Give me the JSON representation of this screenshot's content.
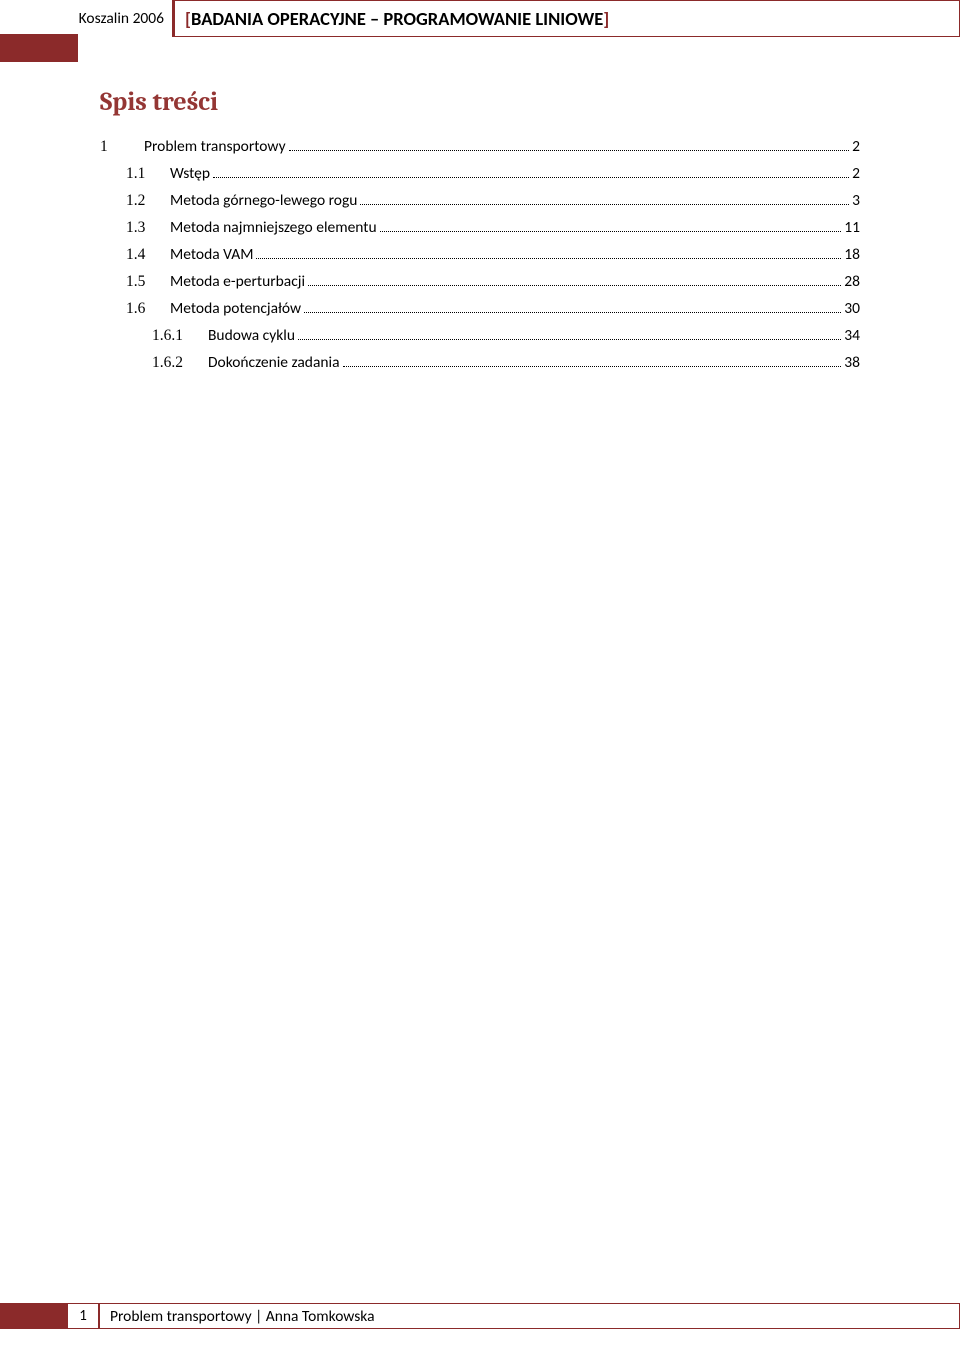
{
  "header": {
    "left_text": "Koszalin 2006",
    "title": "BADANIA OPERACYJNE – PROGRAMOWANIE LINIOWE",
    "bracket_color": "#8b2a2a"
  },
  "toc": {
    "title": "Spis treści",
    "title_color": "#943634",
    "items": [
      {
        "number": "1",
        "label": "Problem transportowy",
        "page": "2",
        "level": 0
      },
      {
        "number": "1.1",
        "label": "Wstęp",
        "page": "2",
        "level": 1
      },
      {
        "number": "1.2",
        "label": "Metoda górnego-lewego rogu",
        "page": "3",
        "level": 1
      },
      {
        "number": "1.3",
        "label": "Metoda najmniejszego elementu",
        "page": "11",
        "level": 1
      },
      {
        "number": "1.4",
        "label": "Metoda VAM",
        "page": "18",
        "level": 1
      },
      {
        "number": "1.5",
        "label": "Metoda e-perturbacji",
        "page": "28",
        "level": 1
      },
      {
        "number": "1.6",
        "label": "Metoda potencjałów",
        "page": "30",
        "level": 1
      },
      {
        "number": "1.6.1",
        "label": "Budowa cyklu",
        "page": "34",
        "level": 2
      },
      {
        "number": "1.6.2",
        "label": "Dokończenie zadania",
        "page": "38",
        "level": 2
      }
    ]
  },
  "footer": {
    "page_number": "1",
    "text": "Problem transportowy | Anna Tomkowska"
  },
  "colors": {
    "accent": "#8b2a2a",
    "toc_title": "#943634",
    "text": "#000000",
    "background": "#ffffff"
  }
}
